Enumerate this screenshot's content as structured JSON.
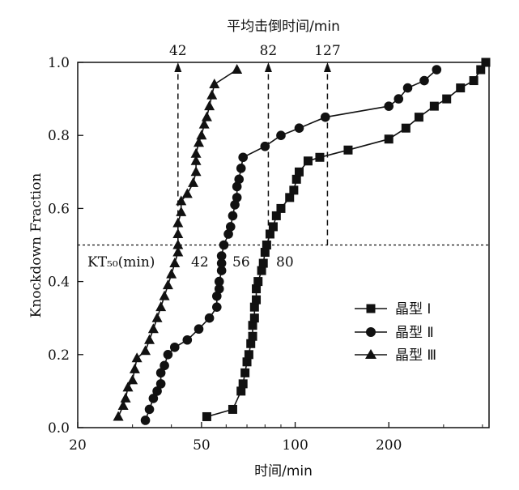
{
  "chart_data": {
    "type": "scatter",
    "title": "",
    "xlabel": "时间/min",
    "ylabel": "Knockdown Fraction",
    "top_xlabel": "平均击倒时间/min",
    "xscale": "log",
    "xlim": [
      20,
      420
    ],
    "ylim": [
      0,
      1
    ],
    "x_ticks": [
      20,
      50,
      100,
      200
    ],
    "x_tick_labels": [
      "20",
      "50",
      "100",
      "200"
    ],
    "y_ticks": [
      0,
      0.2,
      0.4,
      0.6,
      0.8,
      1.0
    ],
    "y_tick_labels": [
      "0.0",
      "0.2",
      "0.4",
      "0.6",
      "0.8",
      "1.0"
    ],
    "legend_position": "center-right",
    "reference_line": {
      "y": 0.5,
      "style": "dotted"
    },
    "kt50_label": "KT₅₀(min)",
    "kt50_values": [
      "42",
      "56",
      "80"
    ],
    "mean_knockdown": [
      {
        "x": 42,
        "label": "42"
      },
      {
        "x": 82,
        "label": "82"
      },
      {
        "x": 127,
        "label": "127"
      }
    ],
    "series": [
      {
        "name": "晶型 Ⅰ",
        "marker": "square",
        "points": [
          [
            52,
            0.03
          ],
          [
            63,
            0.05
          ],
          [
            67,
            0.1
          ],
          [
            68,
            0.12
          ],
          [
            69,
            0.15
          ],
          [
            70,
            0.18
          ],
          [
            71,
            0.2
          ],
          [
            72,
            0.23
          ],
          [
            73,
            0.25
          ],
          [
            73,
            0.28
          ],
          [
            74,
            0.3
          ],
          [
            74,
            0.33
          ],
          [
            75,
            0.35
          ],
          [
            75,
            0.38
          ],
          [
            76,
            0.4
          ],
          [
            78,
            0.43
          ],
          [
            79,
            0.45
          ],
          [
            80,
            0.48
          ],
          [
            81,
            0.5
          ],
          [
            83,
            0.53
          ],
          [
            85,
            0.55
          ],
          [
            87,
            0.58
          ],
          [
            90,
            0.6
          ],
          [
            96,
            0.63
          ],
          [
            99,
            0.65
          ],
          [
            101,
            0.68
          ],
          [
            103,
            0.7
          ],
          [
            110,
            0.73
          ],
          [
            120,
            0.74
          ],
          [
            148,
            0.76
          ],
          [
            200,
            0.79
          ],
          [
            227,
            0.82
          ],
          [
            250,
            0.85
          ],
          [
            280,
            0.88
          ],
          [
            307,
            0.9
          ],
          [
            340,
            0.93
          ],
          [
            375,
            0.95
          ],
          [
            395,
            0.98
          ],
          [
            410,
            1.0
          ]
        ]
      },
      {
        "name": "晶型 Ⅱ",
        "marker": "circle",
        "points": [
          [
            33,
            0.02
          ],
          [
            34,
            0.05
          ],
          [
            35,
            0.08
          ],
          [
            36,
            0.1
          ],
          [
            37,
            0.12
          ],
          [
            37,
            0.15
          ],
          [
            38,
            0.17
          ],
          [
            39,
            0.2
          ],
          [
            41,
            0.22
          ],
          [
            45,
            0.24
          ],
          [
            49,
            0.27
          ],
          [
            53,
            0.3
          ],
          [
            56,
            0.33
          ],
          [
            56,
            0.36
          ],
          [
            57,
            0.38
          ],
          [
            57,
            0.4
          ],
          [
            58,
            0.43
          ],
          [
            58,
            0.45
          ],
          [
            58,
            0.47
          ],
          [
            59,
            0.5
          ],
          [
            61,
            0.53
          ],
          [
            62,
            0.55
          ],
          [
            63,
            0.58
          ],
          [
            64,
            0.61
          ],
          [
            65,
            0.63
          ],
          [
            65,
            0.66
          ],
          [
            66,
            0.68
          ],
          [
            67,
            0.71
          ],
          [
            68,
            0.74
          ],
          [
            80,
            0.77
          ],
          [
            90,
            0.8
          ],
          [
            103,
            0.82
          ],
          [
            125,
            0.85
          ],
          [
            200,
            0.88
          ],
          [
            215,
            0.9
          ],
          [
            230,
            0.93
          ],
          [
            260,
            0.95
          ],
          [
            285,
            0.98
          ]
        ]
      },
      {
        "name": "晶型 Ⅲ",
        "marker": "triangle",
        "points": [
          [
            27,
            0.03
          ],
          [
            28,
            0.06
          ],
          [
            28.5,
            0.08
          ],
          [
            29,
            0.11
          ],
          [
            30,
            0.13
          ],
          [
            30.5,
            0.16
          ],
          [
            31,
            0.19
          ],
          [
            33,
            0.21
          ],
          [
            34,
            0.24
          ],
          [
            35,
            0.27
          ],
          [
            36,
            0.3
          ],
          [
            37,
            0.33
          ],
          [
            38,
            0.36
          ],
          [
            39,
            0.39
          ],
          [
            40,
            0.42
          ],
          [
            41,
            0.45
          ],
          [
            42,
            0.48
          ],
          [
            42,
            0.5
          ],
          [
            42,
            0.53
          ],
          [
            42,
            0.56
          ],
          [
            43,
            0.59
          ],
          [
            43,
            0.62
          ],
          [
            45,
            0.64
          ],
          [
            47,
            0.67
          ],
          [
            48,
            0.7
          ],
          [
            48,
            0.73
          ],
          [
            48,
            0.75
          ],
          [
            49,
            0.78
          ],
          [
            50,
            0.8
          ],
          [
            51,
            0.83
          ],
          [
            52,
            0.85
          ],
          [
            53,
            0.88
          ],
          [
            54,
            0.91
          ],
          [
            55,
            0.94
          ],
          [
            65,
            0.98
          ]
        ]
      }
    ]
  }
}
